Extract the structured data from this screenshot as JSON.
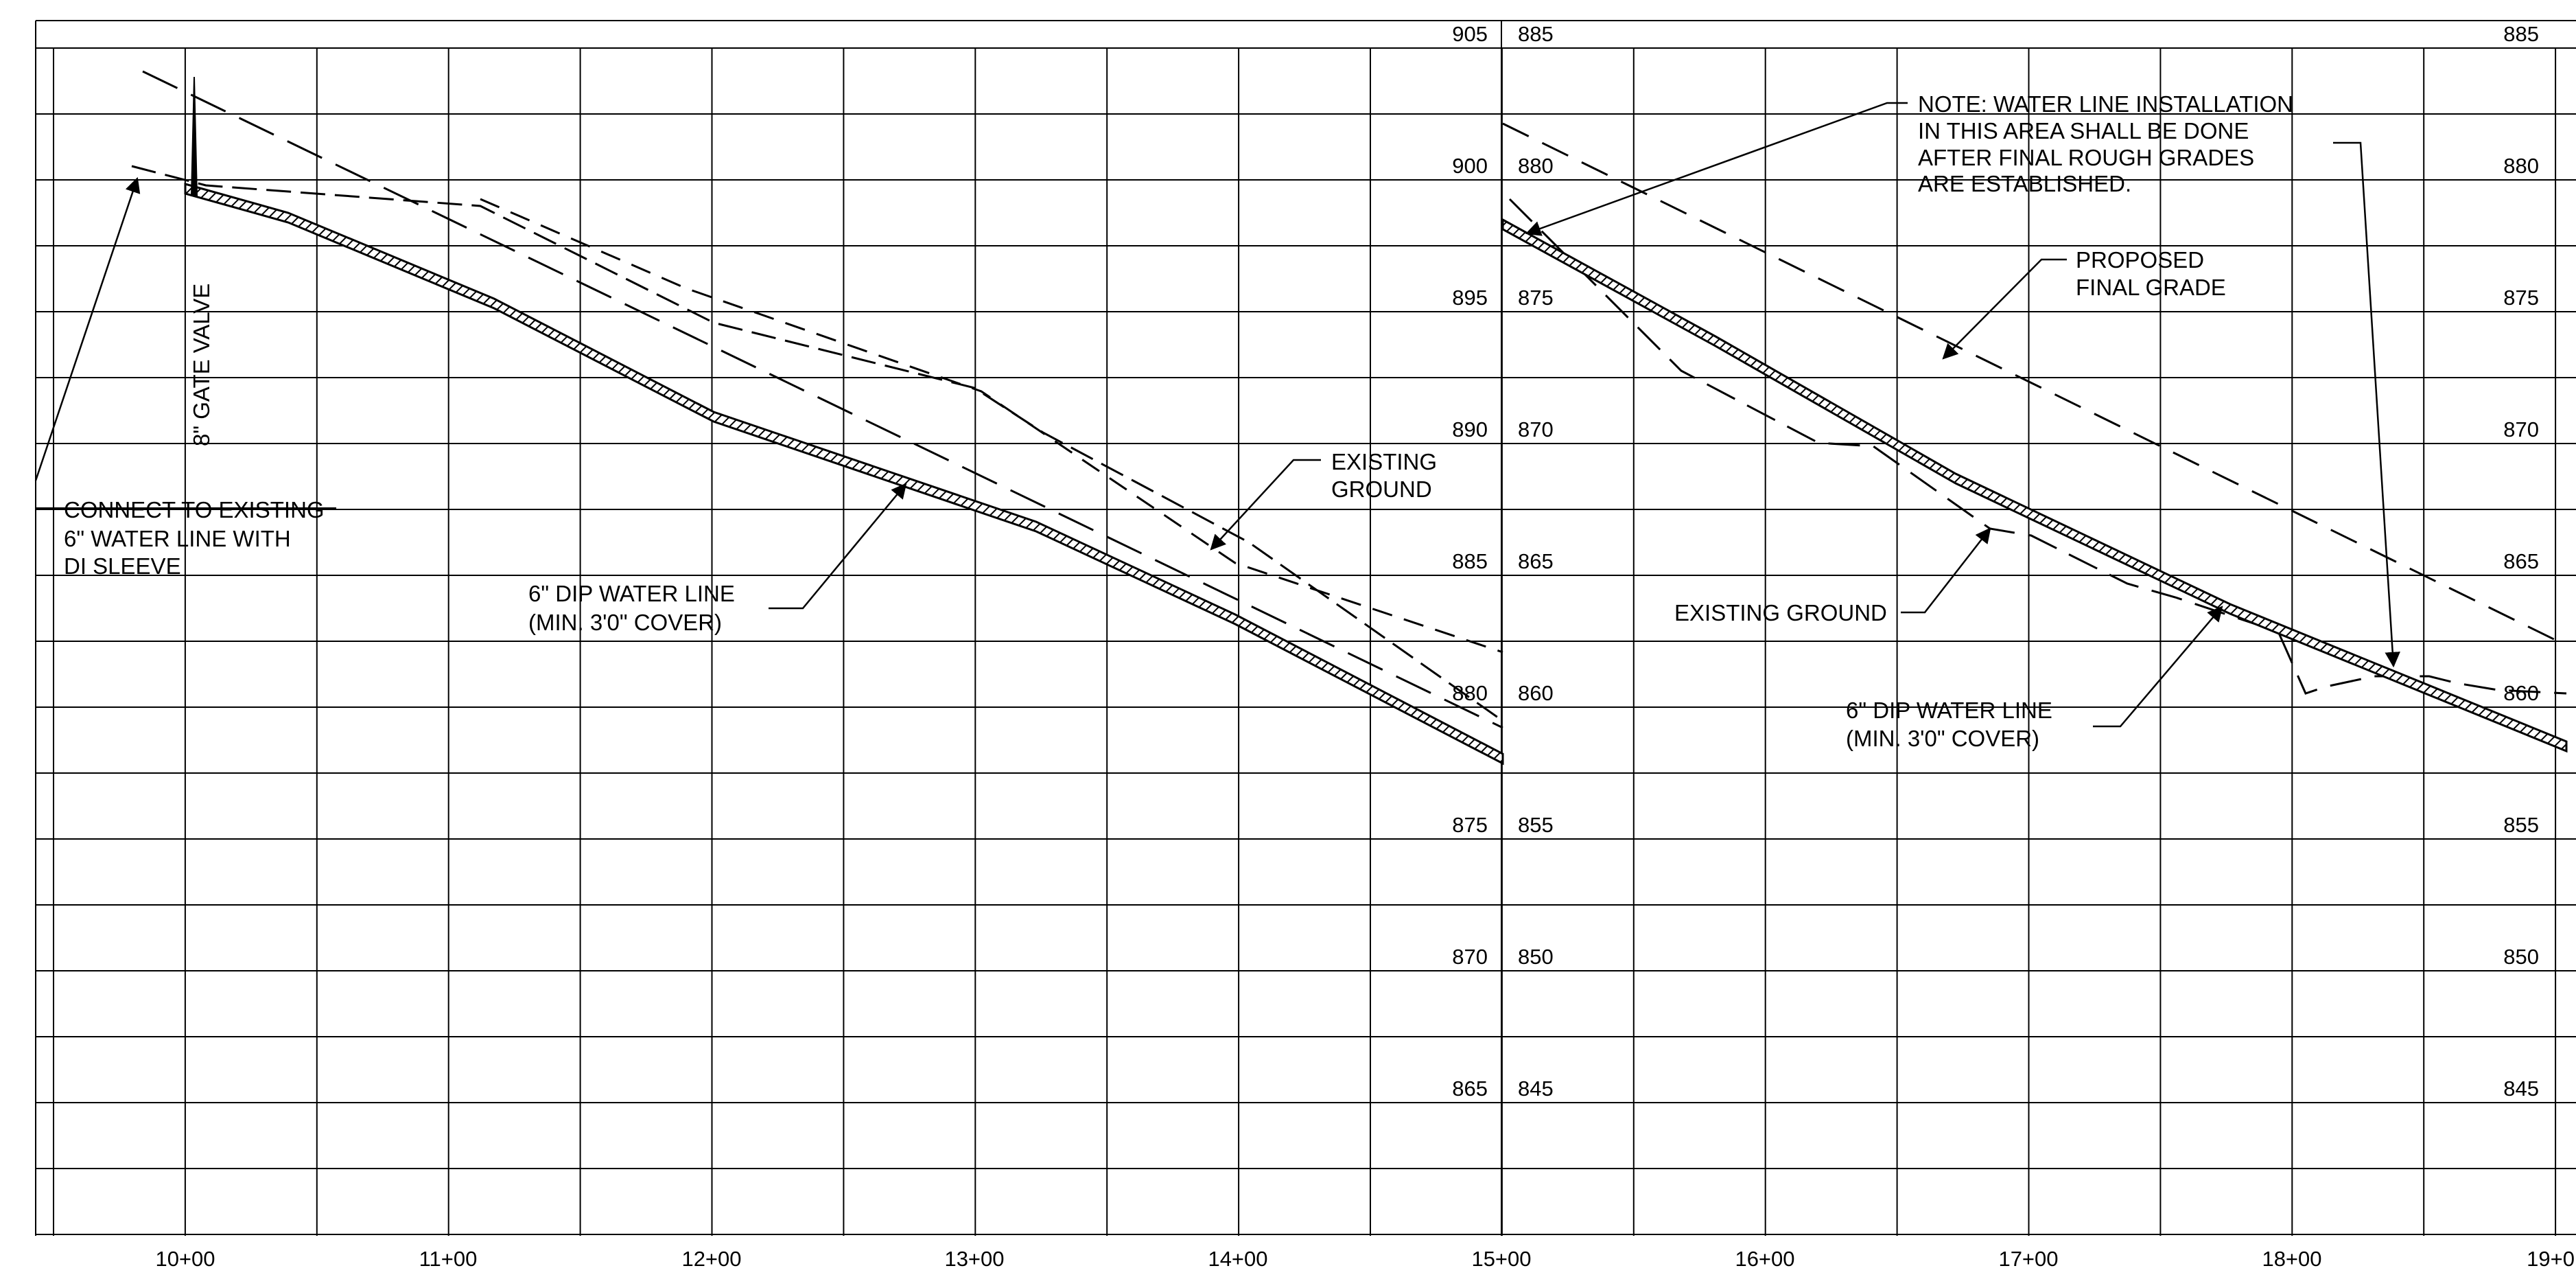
{
  "left_profile": {
    "elevation_labels": [
      "905",
      "900",
      "895",
      "890",
      "885",
      "880",
      "875",
      "870",
      "865"
    ],
    "stations": [
      "10+00",
      "11+00",
      "12+00",
      "13+00",
      "14+00",
      "15+00"
    ]
  },
  "right_profile": {
    "elevation_labels_left": [
      "885",
      "880",
      "875",
      "870",
      "865",
      "860",
      "855",
      "850",
      "845"
    ],
    "elevation_labels_right": [
      "885",
      "880",
      "875",
      "870",
      "865",
      "860",
      "855",
      "850",
      "845"
    ],
    "stations": [
      "16+00",
      "17+00",
      "18+00",
      "19+0"
    ]
  },
  "annotations": {
    "gate_valve": "8\" GATE VALVE",
    "connect_existing": [
      "CONNECT TO EXISTING",
      "6\" WATER LINE WITH",
      "DI SLEEVE"
    ],
    "water_line_left": [
      "6\" DIP WATER LINE",
      "(MIN. 3'0\" COVER)"
    ],
    "existing_ground_left": [
      "EXISTING",
      "GROUND"
    ],
    "note": [
      "NOTE: WATER LINE INSTALLATION",
      "IN THIS AREA SHALL BE DONE",
      "AFTER FINAL ROUGH GRADES",
      "ARE ESTABLISHED."
    ],
    "proposed_final_grade": [
      "PROPOSED",
      "FINAL GRADE"
    ],
    "existing_ground_right": "EXISTING GROUND",
    "water_line_right": [
      "6\" DIP WATER LINE",
      "(MIN. 3'0\" COVER)"
    ]
  },
  "colors": {
    "line": "#000000",
    "background": "#ffffff"
  }
}
